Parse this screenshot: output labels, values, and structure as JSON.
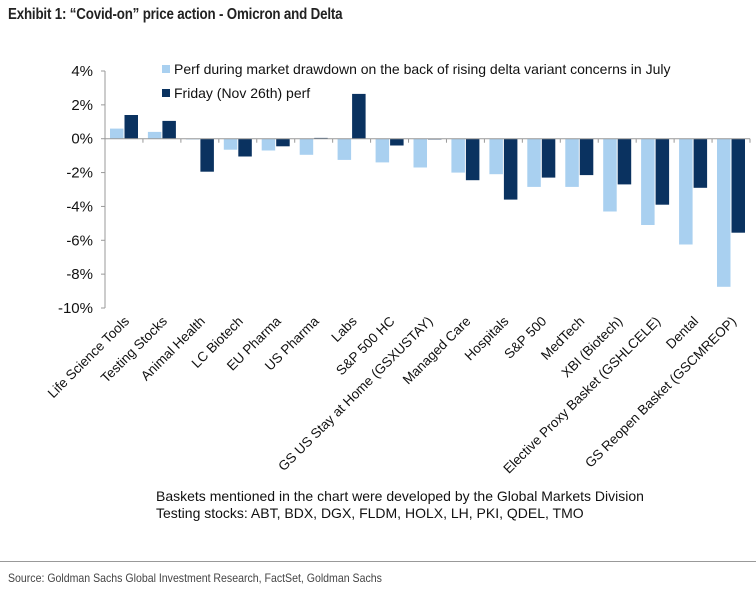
{
  "title": "Exhibit 1: “Covid-on” price action - Omicron and Delta",
  "notes": [
    "Baskets mentioned in the chart were developed by the Global Markets Division",
    "Testing stocks: ABT, BDX, DGX, FLDM, HOLX, LH, PKI, QDEL, TMO"
  ],
  "source": "Source: Goldman Sachs Global Investment Research, FactSet, Goldman Sachs",
  "chart_data": {
    "type": "bar",
    "title": "Exhibit 1: “Covid-on” price action - Omicron and Delta",
    "xlabel": "",
    "ylabel": "",
    "ylim": [
      -10,
      4
    ],
    "yticks": [
      4,
      2,
      0,
      -2,
      -4,
      -6,
      -8,
      -10
    ],
    "ytick_labels": [
      "4%",
      "2%",
      "0%",
      "-2%",
      "-4%",
      "-6%",
      "-8%",
      "-10%"
    ],
    "grid": false,
    "legend_position": "top",
    "categories": [
      "Life Science Tools",
      "Testing Stocks",
      "Animal Health",
      "LC Biotech",
      "EU Pharma",
      "US Pharma",
      "Labs",
      "S&P 500 HC",
      "GS US Stay at Home (GSXUSTAY)",
      "Managed Care",
      "Hospitals",
      "S&P 500",
      "MedTech",
      "XBI (Biotech)",
      "Elective Proxy Basket (GSHLCELE)",
      "Dental",
      "GS Reopen Basket (GSCMREOP)"
    ],
    "series": [
      {
        "name": "Perf during market drawdown on the back of rising delta variant concerns in July",
        "color": "#a9d0f0",
        "values": [
          0.6,
          0.4,
          0.0,
          -0.65,
          -0.7,
          -0.95,
          -1.25,
          -1.4,
          -1.7,
          -2.0,
          -2.1,
          -2.85,
          -2.85,
          -4.3,
          -5.1,
          -6.25,
          -8.75
        ]
      },
      {
        "name": "Friday (Nov 26th) perf",
        "color": "#0a3260",
        "values": [
          1.4,
          1.05,
          -1.95,
          -1.05,
          -0.45,
          0.05,
          2.65,
          -0.4,
          -0.05,
          -2.45,
          -3.6,
          -2.3,
          -2.15,
          -2.7,
          -3.9,
          -2.9,
          -5.55
        ]
      }
    ]
  }
}
